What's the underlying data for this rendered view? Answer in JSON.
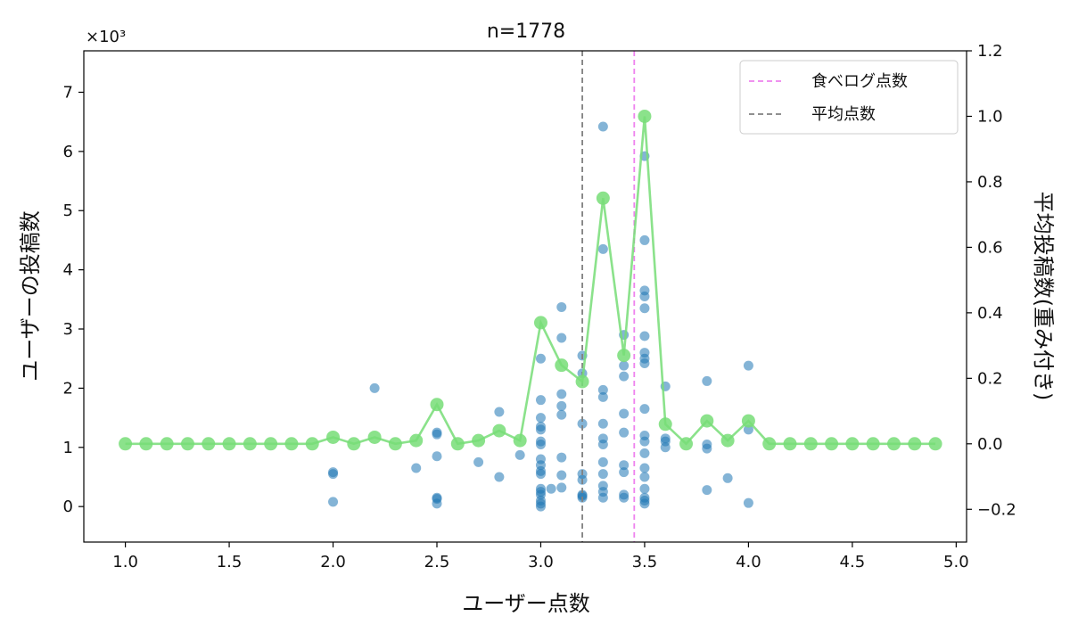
{
  "chart_data": {
    "type": "scatter",
    "title": "n=1778",
    "xlabel": "ユーザー点数",
    "ylabel_left": "ユーザーの投稿数",
    "ylabel_right": "平均投稿数(重み付き)",
    "left_multiplier": "×10³",
    "xlim": [
      0.8,
      5.05
    ],
    "ylim_left": [
      -0.6,
      7.7
    ],
    "ylim_right": [
      -0.3,
      1.2
    ],
    "grid": false,
    "legend_position": "top-right",
    "x_ticks": [
      1.0,
      1.5,
      2.0,
      2.5,
      3.0,
      3.5,
      4.0,
      4.5,
      5.0
    ],
    "x_tick_labels": [
      "1.0",
      "1.5",
      "2.0",
      "2.5",
      "3.0",
      "3.5",
      "4.0",
      "4.5",
      "5.0"
    ],
    "y_left_ticks": [
      0,
      1,
      2,
      3,
      4,
      5,
      6,
      7
    ],
    "y_left_tick_labels": [
      "0",
      "1",
      "2",
      "3",
      "4",
      "5",
      "6",
      "7"
    ],
    "y_right_ticks": [
      -0.2,
      0.0,
      0.2,
      0.4,
      0.6,
      0.8,
      1.0,
      1.2
    ],
    "y_right_tick_labels": [
      "−0.2",
      "0.0",
      "0.2",
      "0.4",
      "0.6",
      "0.8",
      "1.0",
      "1.2"
    ],
    "vlines": [
      {
        "name": "食べログ点数",
        "x": 3.45,
        "color": "#ee82ee"
      },
      {
        "name": "平均点数",
        "x": 3.2,
        "color": "#808080"
      }
    ],
    "scatter": {
      "axis": "left",
      "color": "#1f77b4",
      "points": [
        [
          2.0,
          0.55
        ],
        [
          2.0,
          0.58
        ],
        [
          2.0,
          0.08
        ],
        [
          2.2,
          2.0
        ],
        [
          2.4,
          0.65
        ],
        [
          2.5,
          1.25
        ],
        [
          2.5,
          1.22
        ],
        [
          2.5,
          0.85
        ],
        [
          2.5,
          0.15
        ],
        [
          2.5,
          0.13
        ],
        [
          2.5,
          0.05
        ],
        [
          2.7,
          0.75
        ],
        [
          2.8,
          1.6
        ],
        [
          2.8,
          0.5
        ],
        [
          2.9,
          0.87
        ],
        [
          3.0,
          2.5
        ],
        [
          3.0,
          1.8
        ],
        [
          3.0,
          1.5
        ],
        [
          3.0,
          1.35
        ],
        [
          3.0,
          1.3
        ],
        [
          3.0,
          1.1
        ],
        [
          3.0,
          1.05
        ],
        [
          3.0,
          0.8
        ],
        [
          3.0,
          0.7
        ],
        [
          3.0,
          0.6
        ],
        [
          3.0,
          0.55
        ],
        [
          3.0,
          0.3
        ],
        [
          3.0,
          0.25
        ],
        [
          3.0,
          0.2
        ],
        [
          3.0,
          0.1
        ],
        [
          3.0,
          0.05
        ],
        [
          3.0,
          0.0
        ],
        [
          3.05,
          0.3
        ],
        [
          3.1,
          3.37
        ],
        [
          3.1,
          2.85
        ],
        [
          3.1,
          1.9
        ],
        [
          3.1,
          1.7
        ],
        [
          3.1,
          1.55
        ],
        [
          3.1,
          0.83
        ],
        [
          3.1,
          0.53
        ],
        [
          3.1,
          0.32
        ],
        [
          3.2,
          2.55
        ],
        [
          3.2,
          2.25
        ],
        [
          3.2,
          1.4
        ],
        [
          3.2,
          0.55
        ],
        [
          3.2,
          0.45
        ],
        [
          3.2,
          0.2
        ],
        [
          3.2,
          0.18
        ],
        [
          3.2,
          0.15
        ],
        [
          3.3,
          6.42
        ],
        [
          3.3,
          4.35
        ],
        [
          3.3,
          1.97
        ],
        [
          3.3,
          1.85
        ],
        [
          3.3,
          1.4
        ],
        [
          3.3,
          1.15
        ],
        [
          3.3,
          1.05
        ],
        [
          3.3,
          0.75
        ],
        [
          3.3,
          0.55
        ],
        [
          3.3,
          0.35
        ],
        [
          3.3,
          0.25
        ],
        [
          3.3,
          0.15
        ],
        [
          3.4,
          2.9
        ],
        [
          3.4,
          2.38
        ],
        [
          3.4,
          2.2
        ],
        [
          3.4,
          1.57
        ],
        [
          3.4,
          1.25
        ],
        [
          3.4,
          0.7
        ],
        [
          3.4,
          0.58
        ],
        [
          3.4,
          0.2
        ],
        [
          3.4,
          0.15
        ],
        [
          3.5,
          5.92
        ],
        [
          3.5,
          4.5
        ],
        [
          3.5,
          3.65
        ],
        [
          3.5,
          3.55
        ],
        [
          3.5,
          3.35
        ],
        [
          3.5,
          2.88
        ],
        [
          3.5,
          2.6
        ],
        [
          3.5,
          2.5
        ],
        [
          3.5,
          2.42
        ],
        [
          3.5,
          1.65
        ],
        [
          3.5,
          1.2
        ],
        [
          3.5,
          1.1
        ],
        [
          3.5,
          0.9
        ],
        [
          3.5,
          0.65
        ],
        [
          3.5,
          0.5
        ],
        [
          3.5,
          0.3
        ],
        [
          3.5,
          0.15
        ],
        [
          3.5,
          0.1
        ],
        [
          3.5,
          0.05
        ],
        [
          3.6,
          2.03
        ],
        [
          3.6,
          1.15
        ],
        [
          3.6,
          1.1
        ],
        [
          3.6,
          1.0
        ],
        [
          3.8,
          2.12
        ],
        [
          3.8,
          1.05
        ],
        [
          3.8,
          0.98
        ],
        [
          3.8,
          0.28
        ],
        [
          3.9,
          0.48
        ],
        [
          4.0,
          2.38
        ],
        [
          4.0,
          1.3
        ],
        [
          4.0,
          0.06
        ]
      ]
    },
    "line_series": {
      "axis": "right",
      "color": "#77dd77",
      "x": [
        1.0,
        1.1,
        1.2,
        1.3,
        1.4,
        1.5,
        1.6,
        1.7,
        1.8,
        1.9,
        2.0,
        2.1,
        2.2,
        2.3,
        2.4,
        2.5,
        2.6,
        2.7,
        2.8,
        2.9,
        3.0,
        3.1,
        3.2,
        3.3,
        3.4,
        3.5,
        3.6,
        3.7,
        3.8,
        3.9,
        4.0,
        4.1,
        4.2,
        4.3,
        4.4,
        4.5,
        4.6,
        4.7,
        4.8,
        4.9
      ],
      "y": [
        0.0,
        0.0,
        0.0,
        0.0,
        0.0,
        0.0,
        0.0,
        0.0,
        0.0,
        0.0,
        0.02,
        0.0,
        0.02,
        0.0,
        0.01,
        0.12,
        0.0,
        0.01,
        0.04,
        0.01,
        0.37,
        0.24,
        0.19,
        0.75,
        0.27,
        1.0,
        0.06,
        0.0,
        0.07,
        0.01,
        0.07,
        0.0,
        0.0,
        0.0,
        0.0,
        0.0,
        0.0,
        0.0,
        0.0,
        0.0
      ]
    }
  }
}
